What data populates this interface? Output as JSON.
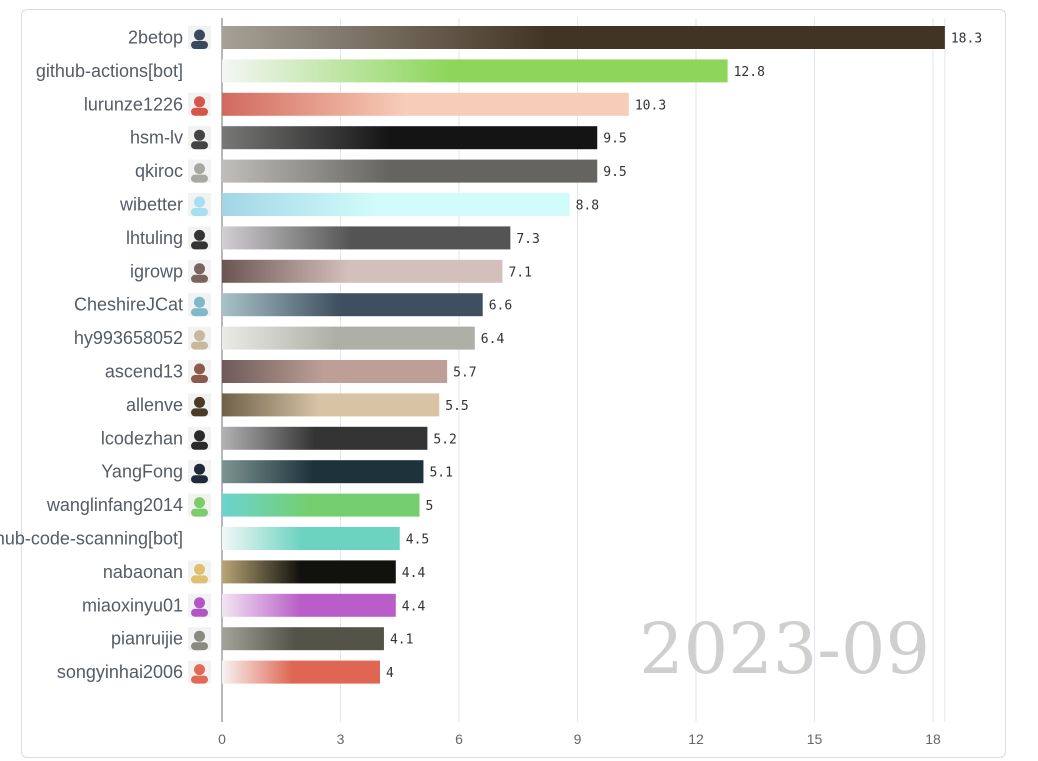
{
  "chart_data": {
    "type": "bar",
    "orientation": "horizontal",
    "period": "2023-09",
    "xlim": [
      0,
      18.3
    ],
    "ticks": [
      0,
      3,
      6,
      9,
      12,
      15,
      18
    ],
    "grid": true,
    "bars": [
      {
        "name": "2betop",
        "value": 18.3,
        "color_start": "#a6a196",
        "color_end": "#423424",
        "avatar_color": "#3a4a5e"
      },
      {
        "name": "github-actions[bot]",
        "value": 12.8,
        "color_start": "#f4f6f4",
        "color_end": "#8dd65b",
        "avatar_color": null
      },
      {
        "name": "lurunze1226",
        "value": 10.3,
        "color_start": "#d2695e",
        "color_end": "#f7cdb7",
        "avatar_color": "#d7564a"
      },
      {
        "name": "hsm-lv",
        "value": 9.5,
        "color_start": "#777876",
        "color_end": "#141414",
        "avatar_color": "#444444"
      },
      {
        "name": "qkiroc",
        "value": 9.5,
        "color_start": "#c0beb8",
        "color_end": "#65645f",
        "avatar_color": "#a8a8a3"
      },
      {
        "name": "wibetter",
        "value": 8.8,
        "color_start": "#a2d6e6",
        "color_end": "#d2fcfb",
        "avatar_color": "#a5dff0"
      },
      {
        "name": "lhtuling",
        "value": 7.3,
        "color_start": "#d2cfd2",
        "color_end": "#545454",
        "avatar_color": "#333333"
      },
      {
        "name": "igrowp",
        "value": 7.1,
        "color_start": "#6b5552",
        "color_end": "#d4c0bb",
        "avatar_color": "#7a6460"
      },
      {
        "name": "CheshireJCat",
        "value": 6.6,
        "color_start": "#a8c2c8",
        "color_end": "#3f4f5f",
        "avatar_color": "#7fb8c8"
      },
      {
        "name": "hy993658052",
        "value": 6.4,
        "color_start": "#eaebe6",
        "color_end": "#aeafa6",
        "avatar_color": "#c8b89c"
      },
      {
        "name": "ascend13",
        "value": 5.7,
        "color_start": "#6d5a58",
        "color_end": "#bd9f97",
        "avatar_color": "#8b5a4c"
      },
      {
        "name": "allenve",
        "value": 5.5,
        "color_start": "#6f6148",
        "color_end": "#d8c4a5",
        "avatar_color": "#4a3a28"
      },
      {
        "name": "lcodezhan",
        "value": 5.2,
        "color_start": "#b2b2b2",
        "color_end": "#343434",
        "avatar_color": "#2a2a2a"
      },
      {
        "name": "YangFong",
        "value": 5.1,
        "color_start": "#7c9490",
        "color_end": "#1e323c",
        "avatar_color": "#1e2a3a"
      },
      {
        "name": "wanglinfang2014",
        "value": 5,
        "color_start": "#6cd3d1",
        "color_end": "#73cf6d",
        "avatar_color": "#7acd6a"
      },
      {
        "name": "github-code-scanning[bot]",
        "value": 4.5,
        "color_start": "#f2f7f6",
        "color_end": "#6bd3c0",
        "avatar_color": null
      },
      {
        "name": "nabaonan",
        "value": 4.4,
        "color_start": "#b9a576",
        "color_end": "#11110d",
        "avatar_color": "#e0c070"
      },
      {
        "name": "miaoxinyu01",
        "value": 4.4,
        "color_start": "#f3e5f2",
        "color_end": "#b95ec8",
        "avatar_color": "#b455c6"
      },
      {
        "name": "pianruijie",
        "value": 4.1,
        "color_start": "#a4a398",
        "color_end": "#535348",
        "avatar_color": "#8a8a80"
      },
      {
        "name": "songyinhai2006",
        "value": 4,
        "color_start": "#f8f3f2",
        "color_end": "#de6652",
        "avatar_color": "#e06a55"
      }
    ]
  }
}
